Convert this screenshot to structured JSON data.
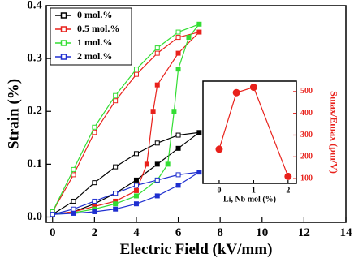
{
  "chart_data": [
    {
      "type": "line",
      "x_label": "Electric Field (kV/mm)",
      "y_label": "Strain (%)",
      "xlim": [
        -0.3,
        14
      ],
      "ylim": [
        -0.01,
        0.4
      ],
      "xticks": [
        0,
        2,
        4,
        6,
        8,
        10,
        12,
        14
      ],
      "yticks": [
        {
          "value": 0,
          "label": "0.0"
        },
        0.1,
        0.2,
        0.3,
        0.4
      ],
      "marker": "square",
      "legend": "upper left",
      "series": [
        {
          "name": "0 mol.%",
          "color": "#000000",
          "x": [
            0,
            1,
            2,
            3,
            4,
            5,
            6,
            7,
            6,
            5,
            4,
            3,
            2,
            1,
            0
          ],
          "values": [
            0.005,
            0.01,
            0.025,
            0.045,
            0.07,
            0.1,
            0.13,
            0.16,
            0.155,
            0.14,
            0.12,
            0.095,
            0.065,
            0.03,
            0.005
          ]
        },
        {
          "name": "0.5 mol.%",
          "color": "#e8211b",
          "x": [
            0,
            1,
            2,
            3,
            4,
            4.5,
            4.8,
            5,
            6,
            7,
            6,
            5,
            4,
            3,
            2,
            1,
            0
          ],
          "values": [
            0.005,
            0.01,
            0.02,
            0.03,
            0.05,
            0.1,
            0.2,
            0.25,
            0.31,
            0.35,
            0.34,
            0.31,
            0.27,
            0.22,
            0.16,
            0.08,
            0.01
          ]
        },
        {
          "name": "1 mol.%",
          "color": "#33dd33",
          "x": [
            0,
            1,
            2,
            3,
            4,
            5,
            5.5,
            5.8,
            6,
            6.5,
            7,
            6,
            5,
            4,
            3,
            2,
            1,
            0
          ],
          "values": [
            0.005,
            0.008,
            0.015,
            0.025,
            0.04,
            0.07,
            0.1,
            0.2,
            0.28,
            0.34,
            0.365,
            0.35,
            0.32,
            0.28,
            0.23,
            0.17,
            0.09,
            0.01
          ]
        },
        {
          "name": "2 mol.%",
          "color": "#1f2fd0",
          "x": [
            0,
            1,
            2,
            3,
            4,
            5,
            6,
            7,
            6,
            5,
            4,
            3,
            2,
            1,
            0
          ],
          "values": [
            0.005,
            0.007,
            0.01,
            0.015,
            0.025,
            0.04,
            0.06,
            0.085,
            0.08,
            0.07,
            0.06,
            0.045,
            0.03,
            0.015,
            0.005
          ]
        }
      ]
    },
    {
      "type": "line",
      "x_label": "Li, Nb mol (%)",
      "y_label": "Smax/Emax (pm/V)",
      "xlim": [
        -0.47,
        2.24
      ],
      "ylim": [
        78,
        548
      ],
      "xticks": [
        0,
        1,
        2
      ],
      "yticks": [
        100,
        200,
        300,
        400,
        500
      ],
      "marker": "circle",
      "series": [
        {
          "color": "#e8211b",
          "x": [
            0,
            0.5,
            1,
            2
          ],
          "values": [
            235,
            495,
            520,
            110
          ]
        }
      ]
    }
  ]
}
